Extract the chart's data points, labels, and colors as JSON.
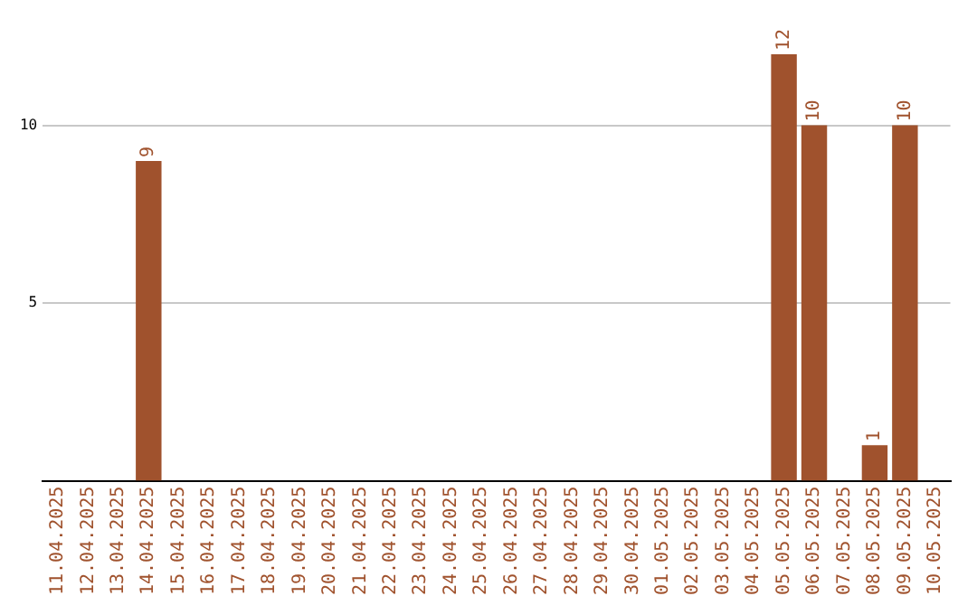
{
  "chart_data": {
    "type": "bar",
    "categories": [
      "11.04.2025",
      "12.04.2025",
      "13.04.2025",
      "14.04.2025",
      "15.04.2025",
      "16.04.2025",
      "17.04.2025",
      "18.04.2025",
      "19.04.2025",
      "20.04.2025",
      "21.04.2025",
      "22.04.2025",
      "23.04.2025",
      "24.04.2025",
      "25.04.2025",
      "26.04.2025",
      "27.04.2025",
      "28.04.2025",
      "29.04.2025",
      "30.04.2025",
      "01.05.2025",
      "02.05.2025",
      "03.05.2025",
      "04.05.2025",
      "05.05.2025",
      "06.05.2025",
      "07.05.2025",
      "08.05.2025",
      "09.05.2025",
      "10.05.2025"
    ],
    "values": [
      0,
      0,
      0,
      9,
      0,
      0,
      0,
      0,
      0,
      0,
      0,
      0,
      0,
      0,
      0,
      0,
      0,
      0,
      0,
      0,
      0,
      0,
      0,
      0,
      12,
      10,
      0,
      1,
      10,
      0
    ],
    "value_labels": [
      null,
      null,
      null,
      "9",
      null,
      null,
      null,
      null,
      null,
      null,
      null,
      null,
      null,
      null,
      null,
      null,
      null,
      null,
      null,
      null,
      null,
      null,
      null,
      null,
      "12",
      "10",
      null,
      "1",
      "10",
      null
    ],
    "color": "#a0522d",
    "ylim": [
      0,
      12
    ],
    "yticks": [
      5,
      10
    ],
    "grid": "y"
  }
}
